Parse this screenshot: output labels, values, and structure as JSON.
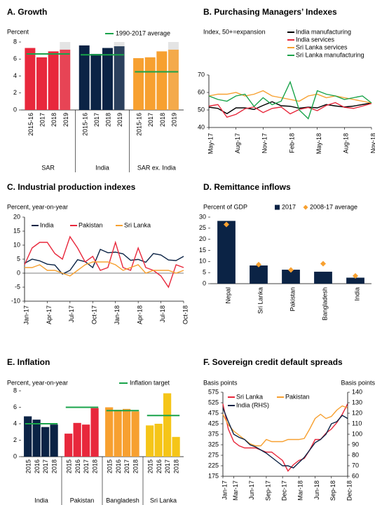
{
  "chart_data": [
    {
      "type": "bar",
      "title": "A. Growth",
      "ylabel": "Percent",
      "reference_label": "1990-2017 average",
      "reference_color": "#19a34a",
      "shade_last": true,
      "ylim": [
        0,
        8
      ],
      "yticks": [
        0,
        2,
        4,
        6,
        8
      ],
      "groups": [
        {
          "name": "SAR",
          "color": "#e8283c",
          "categories": [
            "2015-16",
            "2017",
            "2018",
            "2019"
          ],
          "values": [
            7.3,
            6.2,
            6.9,
            7.1
          ],
          "reference": 6.6
        },
        {
          "name": "India",
          "color": "#0b2345",
          "categories": [
            "2015-16",
            "2017",
            "2018",
            "2019"
          ],
          "values": [
            7.6,
            6.6,
            7.3,
            7.5
          ],
          "reference": 6.5
        },
        {
          "name": "SAR ex. India",
          "color": "#f7a030",
          "categories": [
            "2015-16",
            "2017",
            "2018",
            "2019"
          ],
          "values": [
            6.1,
            6.2,
            6.9,
            7.1
          ],
          "reference": 4.5
        }
      ]
    },
    {
      "type": "line",
      "title": "B. Purchasing Managers’ Indexes",
      "ylabel": "Index, 50+=expansion",
      "x": [
        "May-17",
        "Jun-17",
        "Jul-17",
        "Aug-17",
        "Sep-17",
        "Oct-17",
        "Nov-17",
        "Dec-17",
        "Jan-18",
        "Feb-18",
        "Mar-18",
        "Apr-18",
        "May-18",
        "Jun-18",
        "Jul-18",
        "Aug-18",
        "Sep-18",
        "Oct-18",
        "Nov-18"
      ],
      "xticks": [
        "May-17",
        "Aug-17",
        "Nov-17",
        "Feb-18",
        "May-18",
        "Aug-18",
        "Nov-18"
      ],
      "ylim": [
        40,
        70
      ],
      "yticks": [
        40,
        50,
        60,
        70
      ],
      "series": [
        {
          "name": "India manufacturing",
          "color": "#000000",
          "values": [
            51.6,
            50.9,
            47.9,
            51.2,
            51.2,
            50.3,
            52.6,
            54.7,
            52.4,
            52.1,
            51.0,
            51.6,
            51.2,
            53.1,
            52.3,
            51.7,
            52.2,
            53.1,
            54.0
          ]
        },
        {
          "name": "India services",
          "color": "#e8283c",
          "values": [
            52.2,
            53.1,
            45.9,
            47.5,
            50.7,
            51.7,
            48.5,
            50.9,
            51.7,
            47.8,
            50.3,
            51.4,
            49.6,
            52.6,
            54.2,
            51.5,
            50.9,
            52.2,
            53.7
          ]
        },
        {
          "name": "Sri Lanka services",
          "color": "#f7a030",
          "values": [
            58,
            59,
            59,
            60,
            58,
            59,
            61,
            58,
            57,
            56,
            55,
            58,
            59,
            57,
            58,
            57,
            56,
            55,
            54
          ]
        },
        {
          "name": "Sri Lanka manufacturing",
          "color": "#19a34a",
          "values": [
            58,
            56,
            55,
            58,
            59,
            52,
            57,
            53,
            55,
            66,
            50,
            45,
            61,
            59,
            58,
            56,
            57,
            58,
            54
          ]
        }
      ]
    },
    {
      "type": "line",
      "title": "C. Industrial production indexes",
      "ylabel": "Percent, year-on-year",
      "x": [
        "Jan-17",
        "Feb-17",
        "Mar-17",
        "Apr-17",
        "May-17",
        "Jun-17",
        "Jul-17",
        "Aug-17",
        "Sep-17",
        "Oct-17",
        "Nov-17",
        "Dec-17",
        "Jan-18",
        "Feb-18",
        "Mar-18",
        "Apr-18",
        "May-18",
        "Jun-18",
        "Jul-18",
        "Aug-18",
        "Sep-18",
        "Oct-18"
      ],
      "xticks": [
        "Jan-17",
        "Apr-17",
        "Jul-17",
        "Oct-17",
        "Jan-18",
        "Apr-18",
        "Jul-18",
        "Oct-18"
      ],
      "ylim": [
        -10,
        20
      ],
      "yticks": [
        -10,
        -5,
        0,
        5,
        10,
        15,
        20
      ],
      "series": [
        {
          "name": "India",
          "color": "#0b2345",
          "values": [
            3.5,
            5,
            4.4,
            3.2,
            2.9,
            -0.3,
            1,
            4.8,
            4.1,
            2,
            8.5,
            7.3,
            7.5,
            6.9,
            4.6,
            4.9,
            3.9,
            7,
            6.5,
            4.7,
            4.5,
            6
          ]
        },
        {
          "name": "Pakistan",
          "color": "#e8283c",
          "values": [
            3,
            9,
            11,
            11,
            7,
            5,
            13,
            9,
            4,
            6,
            1,
            2,
            11,
            2,
            1,
            9,
            2,
            1,
            -1,
            -5,
            3,
            2
          ]
        },
        {
          "name": "Sri Lanka",
          "color": "#f7a030",
          "values": [
            2,
            2,
            3,
            1,
            1,
            0,
            -1,
            1,
            3,
            4,
            4,
            4,
            3,
            1,
            2,
            3,
            0,
            1,
            1,
            1,
            0,
            1
          ]
        }
      ]
    },
    {
      "type": "bar",
      "title": "D. Remittance inflows",
      "ylabel": "Percent of GDP",
      "categories": [
        "Nepal",
        "Sri Lanka",
        "Pakistan",
        "Bangladesh",
        "India"
      ],
      "ylim": [
        0,
        30
      ],
      "yticks": [
        0,
        5,
        10,
        15,
        20,
        25,
        30
      ],
      "series": [
        {
          "name": "2017",
          "color": "#0b2345",
          "values": [
            28.3,
            8.2,
            6.3,
            5.4,
            2.7
          ]
        },
        {
          "name": "2008-17 average",
          "color": "#f7a030",
          "marker": "diamond",
          "values": [
            26.7,
            8.6,
            6.2,
            9.0,
            3.5
          ]
        }
      ]
    },
    {
      "type": "bar",
      "title": "E. Inflation",
      "ylabel": "Percent, year-on-year",
      "reference_label": "Inflation target",
      "reference_color": "#19a34a",
      "ylim": [
        0,
        8
      ],
      "yticks": [
        0,
        2,
        4,
        6,
        8
      ],
      "groups": [
        {
          "name": "India",
          "color": "#0b2345",
          "categories": [
            "2015",
            "2016",
            "2017",
            "2018"
          ],
          "values": [
            4.9,
            4.5,
            3.6,
            3.9
          ],
          "reference": 4
        },
        {
          "name": "Pakistan",
          "color": "#e8283c",
          "categories": [
            "2015",
            "2016",
            "2017",
            "2018"
          ],
          "values": [
            2.8,
            4.1,
            3.9,
            5.9
          ],
          "reference": 6
        },
        {
          "name": "Bangladesh",
          "color": "#f7a030",
          "categories": [
            "2015",
            "2016",
            "2017",
            "2018"
          ],
          "values": [
            6.0,
            5.7,
            5.8,
            5.5
          ],
          "reference": 5.6
        },
        {
          "name": "Sri Lanka",
          "color": "#f5c518",
          "categories": [
            "2015",
            "2016",
            "2017",
            "2018"
          ],
          "values": [
            3.8,
            4.0,
            7.7,
            2.4
          ],
          "reference": 5
        }
      ]
    },
    {
      "type": "line",
      "title": "F. Sovereign credit default spreads",
      "ylabel": "Basis points",
      "y2label": "Basis points",
      "x": [
        "Jan-17",
        "Feb-17",
        "Mar-17",
        "Apr-17",
        "May-17",
        "Jun-17",
        "Jul-17",
        "Aug-17",
        "Sep-17",
        "Oct-17",
        "Nov-17",
        "Dec-17",
        "Jan-18",
        "Feb-18",
        "Mar-18",
        "Apr-18",
        "May-18",
        "Jun-18",
        "Jul-18",
        "Aug-18",
        "Sep-18",
        "Oct-18",
        "Nov-18",
        "Dec-18"
      ],
      "xticks": [
        "Jan-17",
        "Mar-17",
        "Jun-17",
        "Sep-17",
        "Dec-17",
        "Mar-18",
        "Jun-18",
        "Sep-18",
        "Dec-18"
      ],
      "ylim": [
        175,
        575
      ],
      "yticks": [
        175,
        225,
        275,
        325,
        375,
        425,
        475,
        525,
        575
      ],
      "y2lim": [
        60,
        140
      ],
      "y2ticks": [
        60,
        70,
        80,
        90,
        100,
        110,
        120,
        130,
        140
      ],
      "series": [
        {
          "name": "Sri Lanka",
          "color": "#e8283c",
          "values": [
            520,
            400,
            340,
            320,
            310,
            310,
            310,
            300,
            290,
            290,
            270,
            250,
            200,
            230,
            250,
            260,
            300,
            350,
            350,
            380,
            400,
            430,
            470,
            520
          ]
        },
        {
          "name": "Pakistan",
          "color": "#f7a030",
          "values": [
            470,
            420,
            390,
            370,
            350,
            330,
            320,
            320,
            350,
            340,
            340,
            340,
            350,
            350,
            350,
            355,
            400,
            450,
            470,
            450,
            460,
            490,
            510,
            500
          ]
        },
        {
          "name": "India (RHS)",
          "color": "#0b2345",
          "axis": "y2",
          "values": [
            125,
            112,
            100,
            97,
            95,
            90,
            88,
            85,
            82,
            78,
            74,
            70,
            70,
            68,
            73,
            78,
            85,
            92,
            95,
            100,
            110,
            112,
            118,
            115
          ]
        }
      ]
    }
  ]
}
